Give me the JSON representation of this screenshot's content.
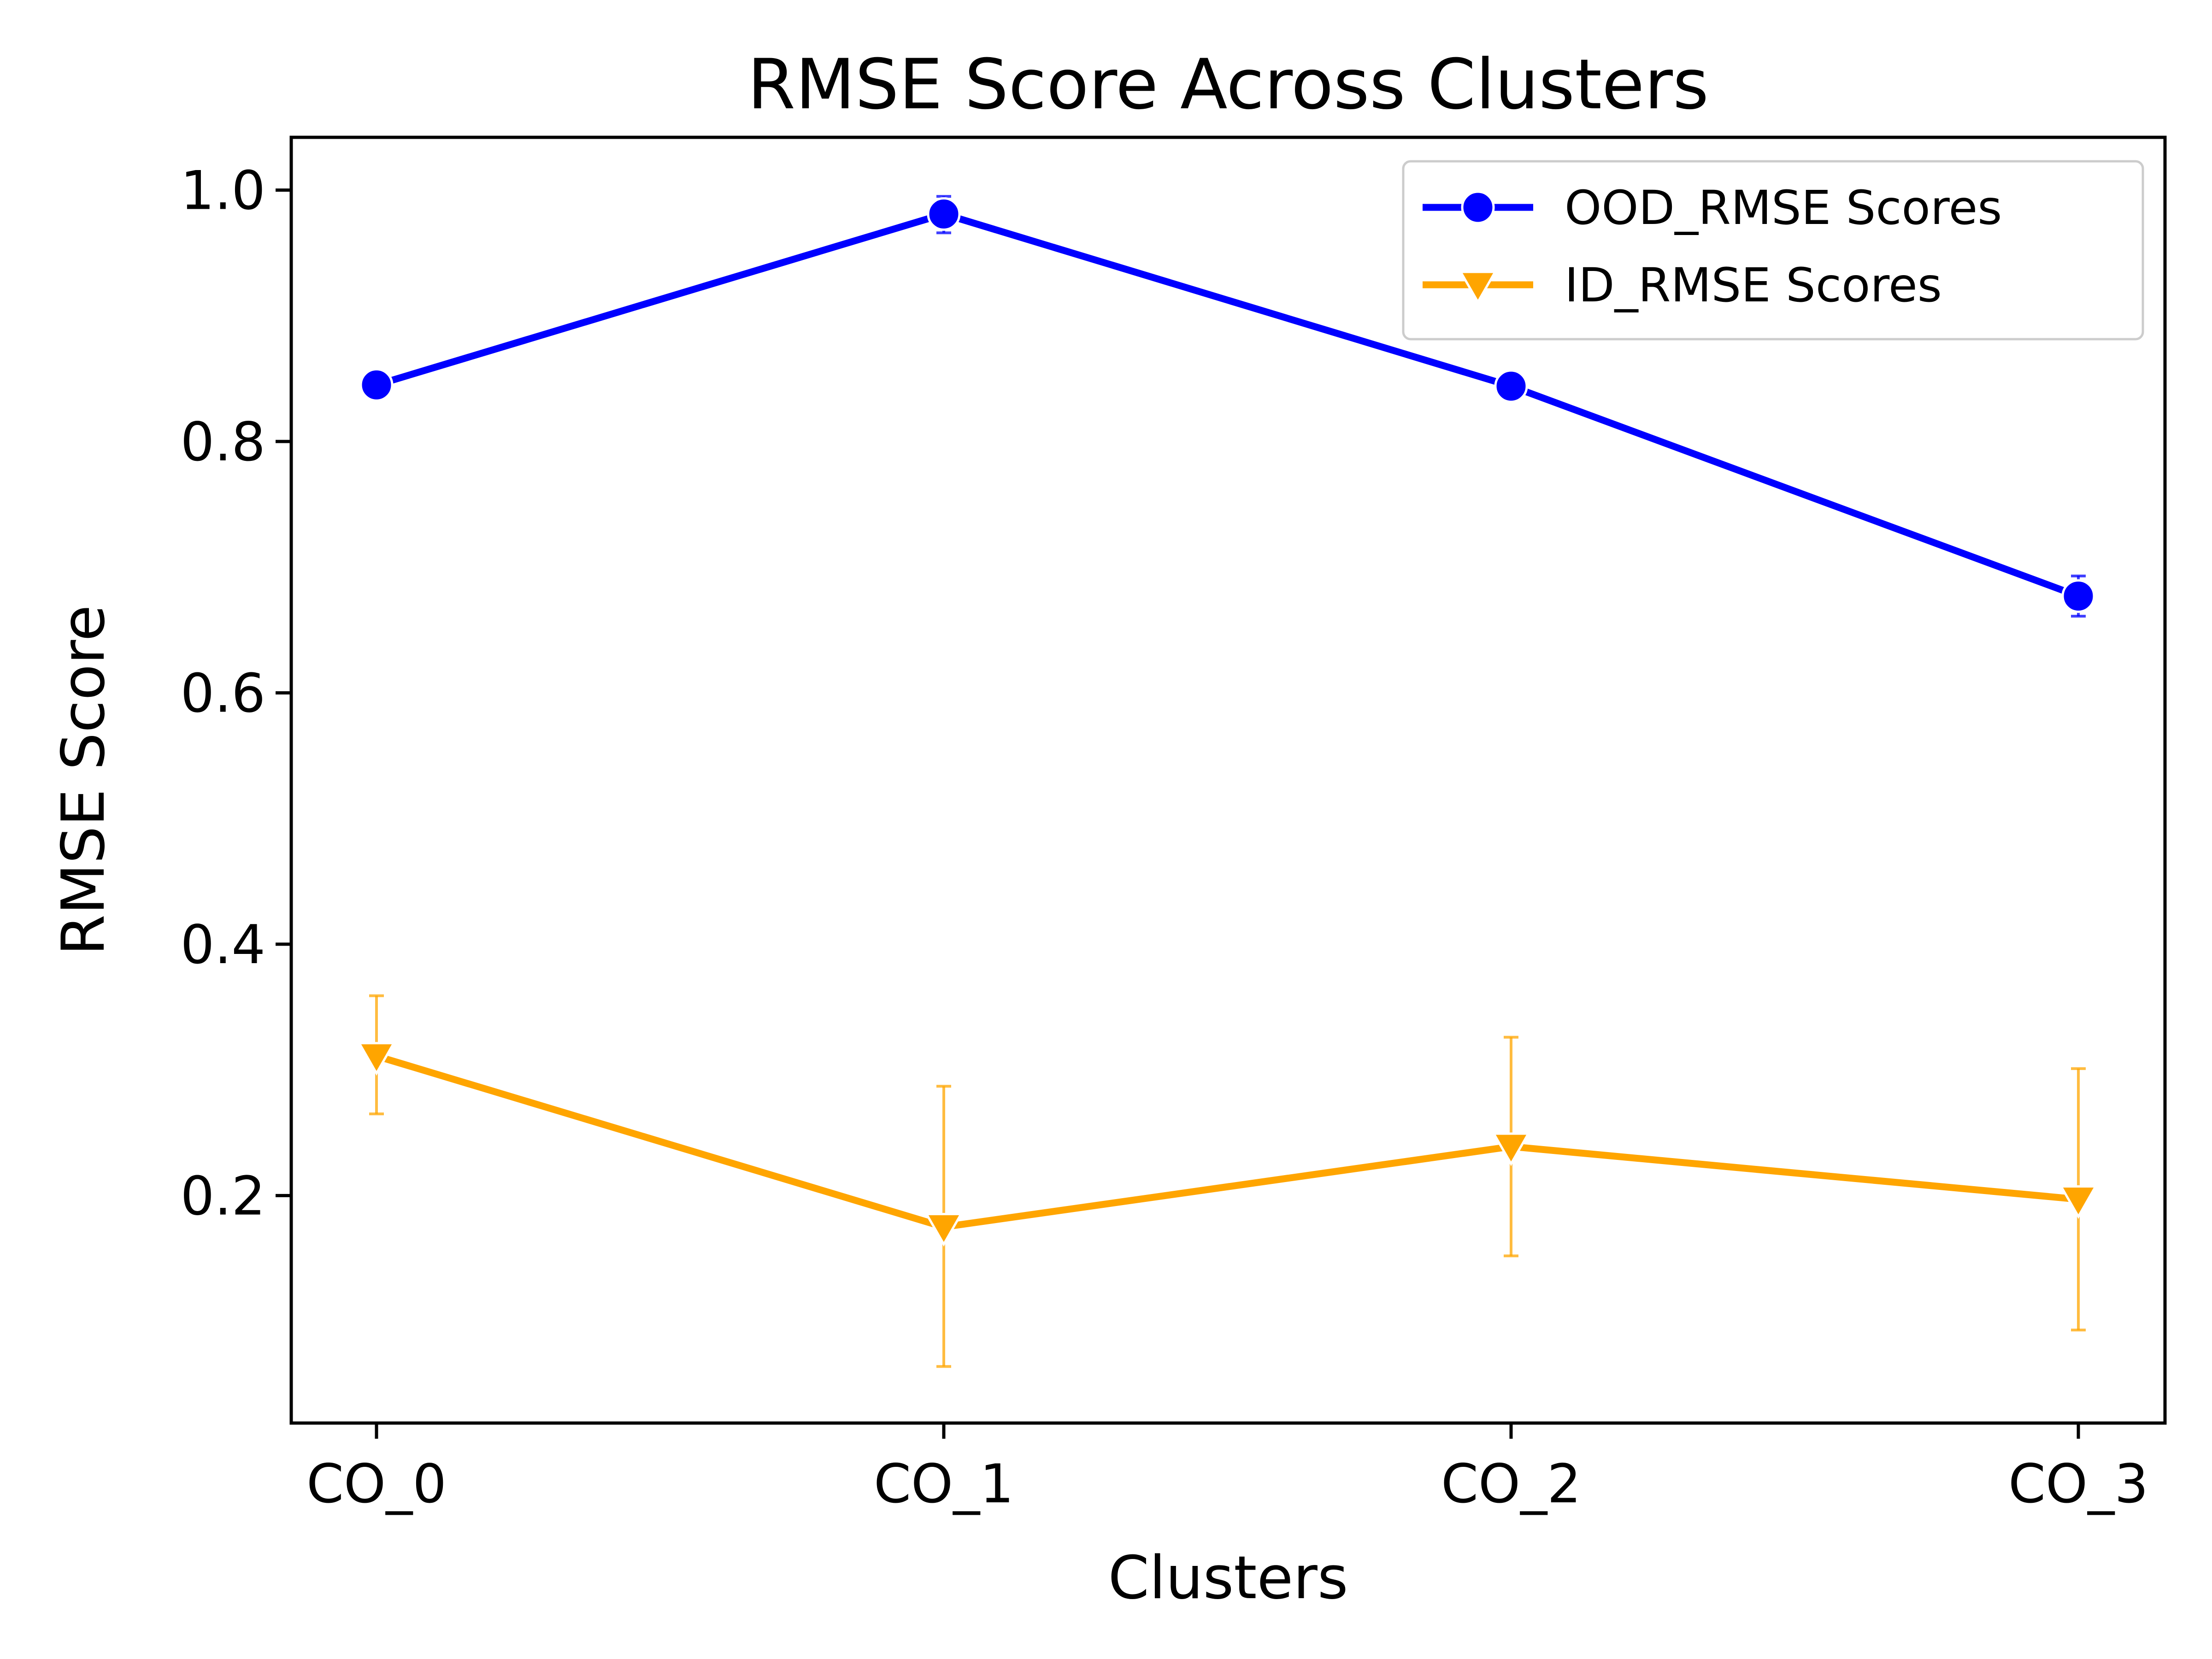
{
  "chart_data": {
    "type": "line",
    "title": "RMSE Score Across Clusters",
    "xlabel": "Clusters",
    "ylabel": "RMSE Score",
    "categories": [
      "CO_0",
      "CO_1",
      "CO_2",
      "CO_3"
    ],
    "yticks": [
      0.2,
      0.4,
      0.6,
      0.8,
      1.0
    ],
    "ytick_labels": [
      "0.2",
      "0.4",
      "0.6",
      "0.8",
      "1.0"
    ],
    "ylim": [
      0.019,
      1.042
    ],
    "grid": false,
    "legend_position": "top-right",
    "series": [
      {
        "name": "OOD_RMSE Scores",
        "color": "#0000ff",
        "marker": "circle",
        "values": [
          0.845,
          0.981,
          0.844,
          0.677
        ],
        "error_low": [
          0.842,
          0.966,
          0.841,
          0.661
        ],
        "error_high": [
          0.848,
          0.995,
          0.847,
          0.693
        ]
      },
      {
        "name": "ID_RMSE Scores",
        "color": "#ffa500",
        "marker": "triangle-down",
        "values": [
          0.311,
          0.175,
          0.239,
          0.197
        ],
        "error_low": [
          0.265,
          0.064,
          0.152,
          0.093
        ],
        "error_high": [
          0.359,
          0.287,
          0.326,
          0.301
        ]
      }
    ]
  }
}
